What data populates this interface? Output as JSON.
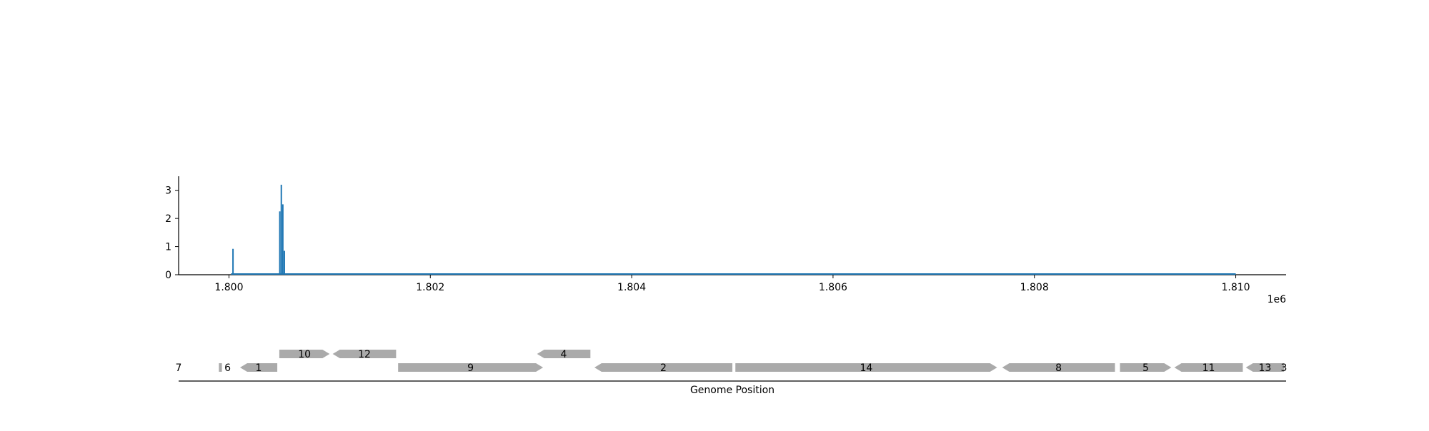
{
  "chart_data": [
    {
      "type": "line",
      "title": "",
      "xlabel": "",
      "ylabel": "",
      "x_offset_label": "1e6",
      "xlim": [
        1.7995,
        1.8105
      ],
      "ylim": [
        0,
        3.5
      ],
      "x_ticks": [
        1.8,
        1.802,
        1.804,
        1.806,
        1.808,
        1.81
      ],
      "x_tick_labels": [
        "1.800",
        "1.802",
        "1.804",
        "1.806",
        "1.808",
        "1.810"
      ],
      "y_ticks": [
        0,
        1,
        2,
        3
      ],
      "y_tick_labels": [
        "0",
        "1",
        "2",
        "3"
      ],
      "series": [
        {
          "color": "#1f77b4",
          "baseline": [
            1.80002,
            1.81
          ],
          "spikes": [
            {
              "x": 1.80004,
              "y": 0.92
            },
            {
              "x": 1.800505,
              "y": 2.25
            },
            {
              "x": 1.80052,
              "y": 3.2
            },
            {
              "x": 1.800535,
              "y": 2.5
            },
            {
              "x": 1.80055,
              "y": 0.85
            }
          ]
        }
      ],
      "grid": false,
      "legend": "none"
    },
    {
      "type": "gene-track",
      "xlabel": "Genome Position",
      "gene_color": "#aaaaaa",
      "edge_labels": {
        "left": "7",
        "right": "3"
      },
      "genes": [
        {
          "label": "6",
          "start": 1.7999,
          "end": 1.79993,
          "strand": "+",
          "row": 0
        },
        {
          "label": "1",
          "start": 1.80011,
          "end": 1.80048,
          "strand": "-",
          "row": 0
        },
        {
          "label": "10",
          "start": 1.8005,
          "end": 1.801,
          "strand": "+",
          "row": 1
        },
        {
          "label": "12",
          "start": 1.80103,
          "end": 1.80166,
          "strand": "-",
          "row": 1
        },
        {
          "label": "9",
          "start": 1.80168,
          "end": 1.80312,
          "strand": "+",
          "row": 0
        },
        {
          "label": "4",
          "start": 1.80306,
          "end": 1.80359,
          "strand": "-",
          "row": 1
        },
        {
          "label": "2",
          "start": 1.80363,
          "end": 1.805,
          "strand": "-",
          "row": 0
        },
        {
          "label": "14",
          "start": 1.80503,
          "end": 1.80763,
          "strand": "+",
          "row": 0
        },
        {
          "label": "8",
          "start": 1.80768,
          "end": 1.8088,
          "strand": "-",
          "row": 0
        },
        {
          "label": "5",
          "start": 1.80885,
          "end": 1.80936,
          "strand": "+",
          "row": 0
        },
        {
          "label": "11",
          "start": 1.80939,
          "end": 1.81007,
          "strand": "-",
          "row": 0
        },
        {
          "label": "13",
          "start": 1.8101,
          "end": 1.81048,
          "strand": "-",
          "row": 0
        }
      ]
    }
  ]
}
